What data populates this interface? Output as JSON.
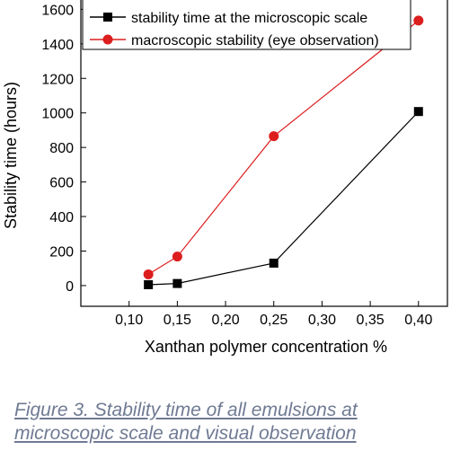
{
  "chart_data": {
    "type": "line",
    "xlabel": "Xanthan polymer concentration %",
    "ylabel": "Stability time (hours)",
    "xlim": [
      0.05,
      0.43
    ],
    "ylim": [
      -120,
      1680
    ],
    "x_ticks": [
      0.1,
      0.15,
      0.2,
      0.25,
      0.3,
      0.35,
      0.4
    ],
    "x_tick_labels": [
      "0,10",
      "0,15",
      "0,20",
      "0,25",
      "0,30",
      "0,35",
      "0,40"
    ],
    "y_ticks": [
      0,
      200,
      400,
      600,
      800,
      1000,
      1200,
      1400,
      1600
    ],
    "y_tick_labels": [
      "0",
      "200",
      "400",
      "600",
      "800",
      "1000",
      "1200",
      "1400",
      "1600"
    ],
    "grid": false,
    "legend_position": "top",
    "series": [
      {
        "name": "stability time at the microscopic scale",
        "color": "#000000",
        "marker": "square",
        "x": [
          0.12,
          0.15,
          0.25,
          0.4
        ],
        "y": [
          5,
          12,
          130,
          1008
        ]
      },
      {
        "name": "macroscopic stability (eye observation)",
        "color": "#dd1e1e",
        "marker": "circle",
        "x": [
          0.12,
          0.15,
          0.25,
          0.4
        ],
        "y": [
          65,
          168,
          865,
          1535
        ]
      }
    ]
  },
  "caption": {
    "line1": "Figure 3. Stability time of all emulsions at",
    "line2": "microscopic scale  and visual observation"
  }
}
